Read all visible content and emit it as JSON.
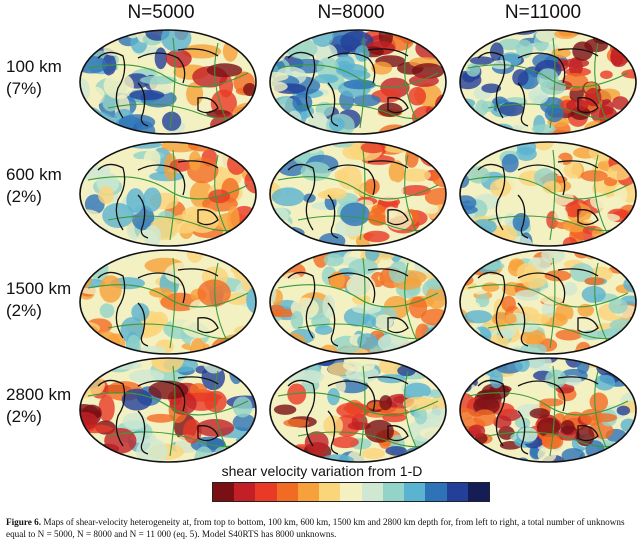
{
  "columns": [
    "N=5000",
    "N=8000",
    "N=11000"
  ],
  "rows": [
    {
      "depth": "100 km",
      "scale": "(7%)"
    },
    {
      "depth": "600 km",
      "scale": "(2%)"
    },
    {
      "depth": "1500 km",
      "scale": "(2%)"
    },
    {
      "depth": "2800 km",
      "scale": "(2%)"
    }
  ],
  "colorbar": {
    "title": "shear velocity variation from 1-D",
    "colors": [
      "#7a0f14",
      "#c22026",
      "#e83a25",
      "#f26b23",
      "#f7a13a",
      "#fbd57a",
      "#f3f0c2",
      "#cfe8d2",
      "#94d3c8",
      "#5ab3d1",
      "#2e73b8",
      "#233f97",
      "#141d55"
    ]
  },
  "caption": {
    "label": "Figure 6.",
    "text": "Maps of shear-velocity heterogeneity at, from top to bottom, 100 km, 600 km, 1500 km and 2800 km depth for, from left to right, a total number of unknowns equal to N = 5000, N = 8000 and N = 11 000 (eq. 5). Model S40RTS has 8000 unknowns."
  }
}
